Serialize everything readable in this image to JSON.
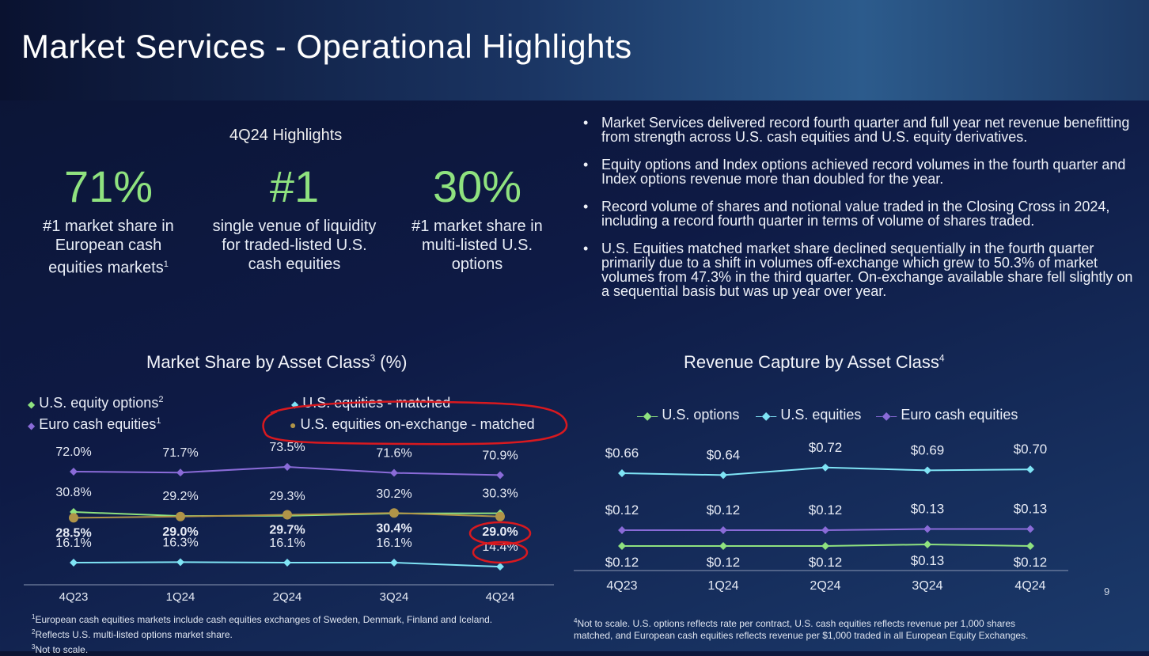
{
  "title": "Market Services - Operational Highlights",
  "highlights": {
    "heading": "4Q24 Highlights",
    "stats": [
      {
        "value": "71%",
        "desc1": "#1 market share in",
        "desc2": "European cash",
        "desc3": "equities markets",
        "sup": "1"
      },
      {
        "value": "#1",
        "desc1": "single venue of liquidity",
        "desc2": "for traded-listed U.S.",
        "desc3": "cash equities",
        "sup": ""
      },
      {
        "value": "30%",
        "desc1": "#1 market share in",
        "desc2": "multi-listed U.S.",
        "desc3": "options",
        "sup": ""
      }
    ]
  },
  "bullets": [
    "Market Services delivered record fourth quarter and full year net revenue benefitting from strength across U.S. cash equities and U.S. equity derivatives.",
    "Equity options and Index options achieved record volumes in the fourth quarter and Index options revenue more than doubled for the year.",
    "Record volume of shares and notional value traded in the Closing Cross in 2024, including a record fourth quarter in terms of volume of shares traded.",
    "U.S. Equities matched market share declined sequentially in the fourth quarter primarily due to a shift in volumes off-exchange which grew to 50.3% of market volumes from 47.3% in the third quarter. On-exchange available share fell slightly on a sequential basis but was up year over year."
  ],
  "colors": {
    "green": "#8fe27f",
    "cyan": "#7fe4f5",
    "purple": "#8a6bd8",
    "gold": "#b09448",
    "annotation_red": "#d8191f"
  },
  "chart_data": [
    {
      "type": "line",
      "title": "Market Share by Asset Class",
      "title_sup": "3",
      "title_suffix": " (%)",
      "categories": [
        "4Q23",
        "1Q24",
        "2Q24",
        "3Q24",
        "4Q24"
      ],
      "legend": [
        {
          "name": "U.S. equity options",
          "sup": "2",
          "color": "#8fe27f",
          "marker": "diamond"
        },
        {
          "name": "Euro cash equities",
          "sup": "1",
          "color": "#8a6bd8",
          "marker": "diamond"
        },
        {
          "name": "U.S. equities - matched",
          "sup": "",
          "color": "#7fe4f5",
          "marker": "diamond"
        },
        {
          "name": "U.S. equities on-exchange - matched",
          "sup": "",
          "color": "#b09448",
          "marker": "circle"
        }
      ],
      "series": [
        {
          "name": "Euro cash equities",
          "values": [
            72.0,
            71.7,
            73.5,
            71.6,
            70.9
          ],
          "labels": [
            "72.0%",
            "71.7%",
            "73.5%",
            "71.6%",
            "70.9%"
          ],
          "color": "#8a6bd8"
        },
        {
          "name": "U.S. equity options",
          "values": [
            30.8,
            29.2,
            29.3,
            30.2,
            30.3
          ],
          "labels": [
            "30.8%",
            "29.2%",
            "29.3%",
            "30.2%",
            "30.3%"
          ],
          "color": "#8fe27f"
        },
        {
          "name": "U.S. equities on-exchange - matched",
          "values": [
            28.5,
            29.0,
            29.7,
            30.4,
            29.0
          ],
          "labels": [
            "28.5%",
            "29.0%",
            "29.7%",
            "30.4%",
            "29.0%"
          ],
          "color": "#b09448"
        },
        {
          "name": "U.S. equities - matched",
          "values": [
            16.1,
            16.3,
            16.1,
            16.1,
            14.4
          ],
          "labels": [
            "16.1%",
            "16.3%",
            "16.1%",
            "16.1%",
            "14.4%"
          ],
          "color": "#7fe4f5"
        }
      ],
      "annotations": [
        "red circle around legend entry U.S. equities on-exchange - matched",
        "red circles around 4Q24 labels 29.0% and 14.4%"
      ]
    },
    {
      "type": "line",
      "title": "Revenue Capture by Asset Class",
      "title_sup": "4",
      "categories": [
        "4Q23",
        "1Q24",
        "2Q24",
        "3Q24",
        "4Q24"
      ],
      "legend": [
        {
          "name": "U.S. options",
          "color": "#8fe27f"
        },
        {
          "name": "U.S. equities",
          "color": "#7fe4f5"
        },
        {
          "name": "Euro cash equities",
          "color": "#8a6bd8"
        }
      ],
      "series": [
        {
          "name": "U.S. equities",
          "values": [
            0.66,
            0.64,
            0.72,
            0.69,
            0.7
          ],
          "labels": [
            "$0.66",
            "$0.64",
            "$0.72",
            "$0.69",
            "$0.70"
          ],
          "color": "#7fe4f5"
        },
        {
          "name": "Euro cash equities",
          "values": [
            0.12,
            0.12,
            0.12,
            0.13,
            0.13
          ],
          "labels": [
            "$0.12",
            "$0.12",
            "$0.12",
            "$0.13",
            "$0.13"
          ],
          "color": "#8a6bd8"
        },
        {
          "name": "U.S. options",
          "values": [
            0.12,
            0.12,
            0.12,
            0.13,
            0.12
          ],
          "labels": [
            "$0.12",
            "$0.12",
            "$0.12",
            "$0.13",
            "$0.12"
          ],
          "color": "#8fe27f"
        }
      ],
      "note": "Not to scale"
    }
  ],
  "footnotes_left": [
    {
      "sup": "1",
      "text": "European cash equities markets include cash equities exchanges of Sweden, Denmark, Finland and Iceland."
    },
    {
      "sup": "2",
      "text": "Reflects U.S. multi-listed options market share."
    },
    {
      "sup": "3",
      "text": "Not to scale."
    }
  ],
  "footnote_right": {
    "sup": "4",
    "line1": "Not to scale. U.S. options reflects rate per contract, U.S. cash equities reflects revenue per 1,000 shares",
    "line2": "matched, and European cash equities reflects revenue per $1,000 traded in all European Equity Exchanges."
  },
  "page_number": "9"
}
